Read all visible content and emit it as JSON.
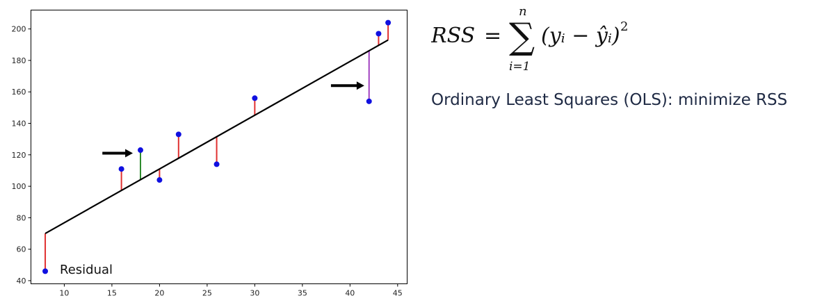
{
  "chart_data": {
    "type": "scatter",
    "title": "",
    "xlabel": "",
    "ylabel": "",
    "xlim": [
      6.5,
      46
    ],
    "ylim": [
      38,
      212
    ],
    "xticks": [
      10,
      15,
      20,
      25,
      30,
      35,
      40,
      45
    ],
    "yticks": [
      40,
      60,
      80,
      100,
      120,
      140,
      160,
      180,
      200
    ],
    "grid": false,
    "regression_line": {
      "x": [
        8,
        44
      ],
      "y": [
        70,
        193
      ]
    },
    "points": [
      {
        "x": 8,
        "y": 46,
        "residual_color": "#e03030"
      },
      {
        "x": 16,
        "y": 111,
        "residual_color": "#e03030"
      },
      {
        "x": 18,
        "y": 123,
        "residual_color": "#2e8b2e"
      },
      {
        "x": 20,
        "y": 104,
        "residual_color": "#e03030"
      },
      {
        "x": 22,
        "y": 133,
        "residual_color": "#e03030"
      },
      {
        "x": 26,
        "y": 114,
        "residual_color": "#e03030"
      },
      {
        "x": 30,
        "y": 156,
        "residual_color": "#e03030"
      },
      {
        "x": 42,
        "y": 154,
        "residual_color": "#a040c0"
      },
      {
        "x": 43,
        "y": 197,
        "residual_color": "#e03030"
      },
      {
        "x": 44,
        "y": 204,
        "residual_color": "#e03030"
      }
    ],
    "arrows": [
      {
        "x_start": 14,
        "x_end": 17.2,
        "y": 121
      },
      {
        "x_start": 38,
        "x_end": 41.5,
        "y": 164
      }
    ],
    "annotation": "Residual",
    "colors": {
      "point": "#1010e0",
      "line": "#000000"
    }
  },
  "formula": {
    "lhs": "RSS",
    "equals": "=",
    "sum_symbol": "∑",
    "upper_limit": "n",
    "lower_limit": "i=1",
    "body": "(yᵢ − ŷᵢ)",
    "exponent": "2"
  },
  "description": "Ordinary Least Squares (OLS): minimize RSS"
}
